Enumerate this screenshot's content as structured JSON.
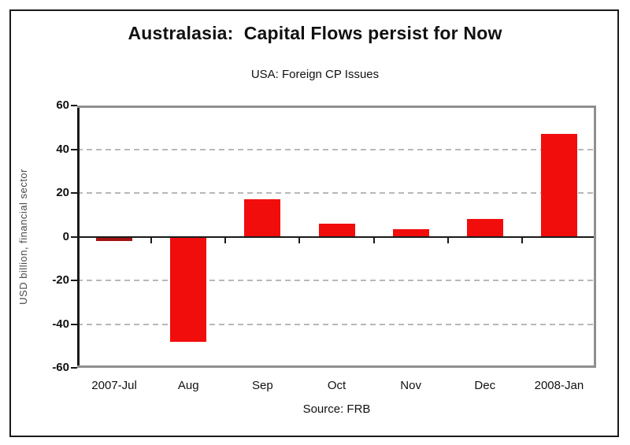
{
  "window": {
    "background": "#ffffff",
    "border_color": "#1a1a1a"
  },
  "colors": {
    "bar": "#f20d0d",
    "first_bar_dark_red": "#a31212",
    "gridline": "#b8b8b8",
    "plot_border": "#8f8f8f",
    "axis": "#1a1a1a",
    "text": "#111111",
    "ylabel_text": "#4a4a4a"
  },
  "chart_data": {
    "type": "bar",
    "title": "Australasia:  Capital Flows persist for Now",
    "subtitle": "USA: Foreign CP Issues",
    "ylabel": "USD billion, financial sector",
    "xlabel": "",
    "source": "Source: FRB",
    "categories": [
      "2007-Jul",
      "Aug",
      "Sep",
      "Oct",
      "Nov",
      "Dec",
      "2008-Jan"
    ],
    "values": [
      -2,
      -48,
      17,
      6,
      3.5,
      8,
      47
    ],
    "bar_colors": [
      "#a31212",
      "#f20d0d",
      "#f20d0d",
      "#f20d0d",
      "#f20d0d",
      "#f20d0d",
      "#f20d0d"
    ],
    "ylim": [
      -60,
      60
    ],
    "yticks": [
      60,
      40,
      20,
      0,
      -20,
      -40,
      -60
    ],
    "grid": "horizontal dashed gridlines at -40, -20, 20, 40; solid black zero axis",
    "legend": "none"
  }
}
